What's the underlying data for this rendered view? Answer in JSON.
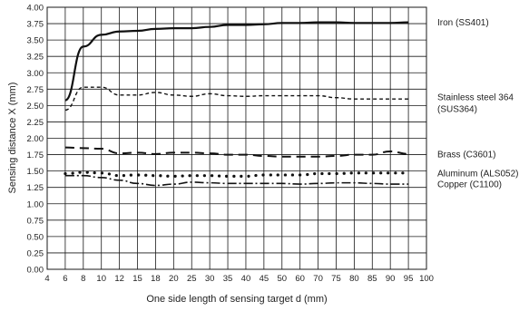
{
  "chart_data": {
    "type": "line",
    "title": "",
    "xlabel": "One side length of sensing target d (mm)",
    "ylabel": "Sensing distance X (mm)",
    "x_ticks": [
      "4",
      "6",
      "8",
      "10",
      "12",
      "15",
      "18",
      "20",
      "25",
      "30",
      "35",
      "40",
      "45",
      "50",
      "60",
      "70",
      "75",
      "80",
      "85",
      "90",
      "95",
      "100"
    ],
    "y_ticks": [
      "0.00",
      "0.25",
      "0.50",
      "0.75",
      "1.00",
      "1.25",
      "1.50",
      "1.75",
      "2.00",
      "2.25",
      "2.50",
      "2.75",
      "3.00",
      "3.25",
      "3.50",
      "3.75",
      "4.00"
    ],
    "ylim": [
      0,
      4
    ],
    "grid": true,
    "legend": "right-side labels",
    "series": [
      {
        "name": "Iron (SS401)",
        "label_lines": [
          "Iron (SS401)"
        ],
        "style": "solid",
        "points": [
          [
            "6",
            2.58
          ],
          [
            "8",
            3.4
          ],
          [
            "10",
            3.58
          ],
          [
            "12",
            3.63
          ],
          [
            "15",
            3.64
          ],
          [
            "18",
            3.67
          ],
          [
            "20",
            3.68
          ],
          [
            "25",
            3.68
          ],
          [
            "30",
            3.7
          ],
          [
            "35",
            3.73
          ],
          [
            "40",
            3.73
          ],
          [
            "45",
            3.74
          ],
          [
            "50",
            3.76
          ],
          [
            "60",
            3.76
          ],
          [
            "70",
            3.77
          ],
          [
            "75",
            3.77
          ],
          [
            "80",
            3.76
          ],
          [
            "85",
            3.76
          ],
          [
            "90",
            3.76
          ],
          [
            "95",
            3.77
          ]
        ]
      },
      {
        "name": "Stainless steel 364 (SUS364)",
        "label_lines": [
          "Stainless steel 364",
          "(SUS364)"
        ],
        "style": "short-dash",
        "points": [
          [
            "6",
            2.43
          ],
          [
            "8",
            2.78
          ],
          [
            "10",
            2.78
          ],
          [
            "12",
            2.66
          ],
          [
            "15",
            2.66
          ],
          [
            "18",
            2.7
          ],
          [
            "20",
            2.66
          ],
          [
            "25",
            2.64
          ],
          [
            "30",
            2.68
          ],
          [
            "35",
            2.65
          ],
          [
            "40",
            2.64
          ],
          [
            "45",
            2.65
          ],
          [
            "50",
            2.65
          ],
          [
            "60",
            2.65
          ],
          [
            "70",
            2.65
          ],
          [
            "75",
            2.62
          ],
          [
            "80",
            2.6
          ],
          [
            "85",
            2.6
          ],
          [
            "90",
            2.6
          ],
          [
            "95",
            2.6
          ]
        ]
      },
      {
        "name": "Brass (C3601)",
        "label_lines": [
          "Brass (C3601)"
        ],
        "style": "long-dash",
        "points": [
          [
            "6",
            1.86
          ],
          [
            "8",
            1.85
          ],
          [
            "10",
            1.84
          ],
          [
            "12",
            1.77
          ],
          [
            "15",
            1.78
          ],
          [
            "18",
            1.76
          ],
          [
            "20",
            1.78
          ],
          [
            "25",
            1.78
          ],
          [
            "30",
            1.77
          ],
          [
            "35",
            1.75
          ],
          [
            "40",
            1.75
          ],
          [
            "45",
            1.73
          ],
          [
            "50",
            1.72
          ],
          [
            "60",
            1.72
          ],
          [
            "70",
            1.72
          ],
          [
            "75",
            1.73
          ],
          [
            "80",
            1.75
          ],
          [
            "85",
            1.75
          ],
          [
            "90",
            1.8
          ],
          [
            "95",
            1.76
          ]
        ]
      },
      {
        "name": "Aluminum (ALS052)",
        "label_lines": [
          "Aluminum (ALS052)"
        ],
        "style": "dotted",
        "points": [
          [
            "6",
            1.46
          ],
          [
            "8",
            1.48
          ],
          [
            "10",
            1.47
          ],
          [
            "12",
            1.43
          ],
          [
            "15",
            1.44
          ],
          [
            "18",
            1.43
          ],
          [
            "20",
            1.42
          ],
          [
            "25",
            1.43
          ],
          [
            "30",
            1.43
          ],
          [
            "35",
            1.42
          ],
          [
            "40",
            1.42
          ],
          [
            "45",
            1.44
          ],
          [
            "50",
            1.44
          ],
          [
            "60",
            1.44
          ],
          [
            "70",
            1.46
          ],
          [
            "75",
            1.46
          ],
          [
            "80",
            1.47
          ],
          [
            "85",
            1.47
          ],
          [
            "90",
            1.47
          ],
          [
            "95",
            1.47
          ]
        ]
      },
      {
        "name": "Copper (C1100)",
        "label_lines": [
          "Copper (C1100)"
        ],
        "style": "dash-dot",
        "points": [
          [
            "6",
            1.43
          ],
          [
            "8",
            1.43
          ],
          [
            "10",
            1.4
          ],
          [
            "12",
            1.36
          ],
          [
            "15",
            1.31
          ],
          [
            "18",
            1.28
          ],
          [
            "20",
            1.3
          ],
          [
            "25",
            1.33
          ],
          [
            "30",
            1.32
          ],
          [
            "35",
            1.31
          ],
          [
            "40",
            1.31
          ],
          [
            "45",
            1.31
          ],
          [
            "50",
            1.31
          ],
          [
            "60",
            1.3
          ],
          [
            "70",
            1.31
          ],
          [
            "75",
            1.32
          ],
          [
            "80",
            1.32
          ],
          [
            "85",
            1.31
          ],
          [
            "90",
            1.3
          ],
          [
            "95",
            1.3
          ]
        ]
      }
    ]
  }
}
